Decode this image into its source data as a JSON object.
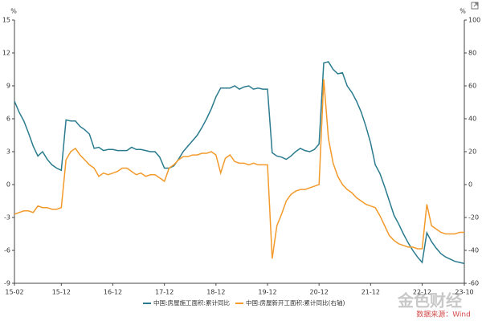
{
  "chart_data": {
    "type": "line",
    "y_unit": "%",
    "y2_unit": "%",
    "categories": [
      "15-02",
      null,
      null,
      null,
      null,
      null,
      null,
      null,
      null,
      null,
      "15-12",
      null,
      null,
      null,
      null,
      null,
      null,
      null,
      null,
      null,
      null,
      "16-12",
      null,
      null,
      null,
      null,
      null,
      null,
      null,
      null,
      null,
      null,
      "17-12",
      null,
      null,
      null,
      null,
      null,
      null,
      null,
      null,
      null,
      null,
      "18-12",
      null,
      null,
      null,
      null,
      null,
      null,
      null,
      null,
      null,
      null,
      "19-12",
      null,
      null,
      null,
      null,
      null,
      null,
      null,
      null,
      null,
      null,
      "20-12",
      null,
      null,
      null,
      null,
      null,
      null,
      null,
      null,
      null,
      null,
      "21-12",
      null,
      null,
      null,
      null,
      null,
      null,
      null,
      null,
      null,
      null,
      "22-12",
      null,
      null,
      null,
      null,
      null,
      null,
      null,
      null,
      "23-10"
    ],
    "series": [
      {
        "name": "中国:房屋施工面积:累计同比",
        "color": "#2a7b8e",
        "values": [
          7.6,
          6.6,
          5.8,
          4.7,
          3.5,
          2.6,
          3.0,
          2.3,
          1.8,
          1.5,
          1.3,
          5.9,
          5.8,
          5.8,
          5.3,
          5.0,
          4.6,
          3.3,
          3.4,
          3.1,
          3.2,
          3.2,
          3.1,
          3.1,
          3.1,
          3.4,
          3.2,
          3.2,
          3.1,
          3.0,
          3.0,
          2.5,
          1.5,
          1.5,
          1.7,
          2.3,
          3.0,
          3.5,
          4.0,
          4.5,
          5.2,
          6.0,
          6.9,
          8.0,
          8.8,
          8.8,
          8.8,
          9.0,
          8.7,
          8.9,
          9.0,
          8.7,
          8.8,
          8.7,
          8.7,
          2.9,
          2.6,
          2.5,
          2.3,
          2.6,
          3.0,
          3.3,
          3.1,
          3.0,
          3.2,
          3.7,
          11.1,
          11.2,
          10.5,
          10.1,
          10.2,
          9.0,
          8.4,
          7.6,
          6.6,
          5.3,
          3.8,
          1.8,
          1.0,
          -0.2,
          -1.5,
          -2.8,
          -3.6,
          -4.5,
          -5.3,
          -6.0,
          -6.6,
          -7.1,
          -4.4,
          -5.2,
          -5.8,
          -6.3,
          -6.6,
          -6.8,
          -7.0,
          -7.1,
          -7.2
        ]
      },
      {
        "name": "中国:房屋新开工面积:累计同比(右轴)",
        "color": "#f39a2b",
        "axis": "y2",
        "values": [
          -18,
          -17,
          -16,
          -16,
          -17,
          -13,
          -14,
          -14,
          -15,
          -15,
          -14,
          15,
          20,
          22,
          18,
          15,
          12,
          10,
          5,
          7,
          6,
          7,
          8,
          10,
          10,
          8,
          6,
          7,
          5,
          6,
          6,
          4,
          2,
          10,
          12,
          15,
          17,
          17,
          18,
          18,
          19,
          19,
          20,
          18,
          7,
          16,
          18,
          14,
          13,
          13,
          12,
          13,
          12,
          12,
          12,
          -45,
          -25,
          -18,
          -10,
          -6,
          -4,
          -3,
          -3,
          -2,
          -1,
          0,
          64,
          28,
          13,
          5,
          0,
          -3,
          -5,
          -8,
          -10,
          -12,
          -13,
          -14,
          -19,
          -25,
          -31,
          -34,
          -36,
          -37,
          -38,
          -38,
          -39,
          -39,
          -12,
          -25,
          -27,
          -29,
          -30,
          -30,
          -30,
          -29,
          -29
        ]
      }
    ],
    "ylim": [
      -9,
      15
    ],
    "yticks": [
      -9,
      -6,
      -3,
      0,
      3,
      6,
      9,
      12,
      15
    ],
    "y2lim": [
      -60,
      100
    ],
    "y2ticks": [
      -60,
      -40,
      -20,
      0,
      20,
      40,
      60,
      80,
      100
    ],
    "grid": false,
    "legend": "bottom",
    "watermark": "金色财经",
    "source": "数据来源：Wind"
  }
}
